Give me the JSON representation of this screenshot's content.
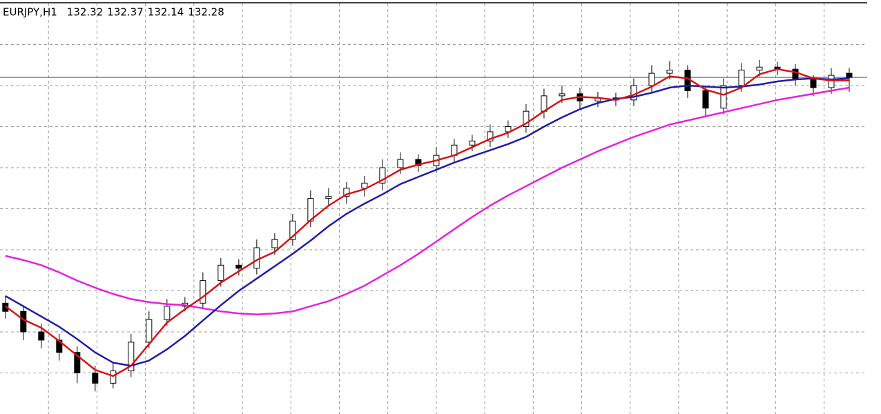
{
  "chart_data": {
    "type": "candlestick",
    "title": "EURJPY,H1",
    "open": [
      130.08,
      130.0,
      129.8,
      129.72,
      129.6,
      129.4,
      129.3,
      129.42,
      129.7,
      129.92,
      130.05,
      130.08,
      130.3,
      130.45,
      130.42,
      130.62,
      130.7,
      130.88,
      131.1,
      131.12,
      131.2,
      131.25,
      131.4,
      131.48,
      131.42,
      131.52,
      131.62,
      131.66,
      131.75,
      131.8,
      131.95,
      132.1,
      132.12,
      132.05,
      132.08,
      132.06,
      132.2,
      132.32,
      132.35,
      132.15,
      131.98,
      132.2,
      132.35,
      132.38,
      132.36,
      132.26,
      132.18,
      132.32
    ],
    "high": [
      130.15,
      130.06,
      129.88,
      129.78,
      129.66,
      129.47,
      129.5,
      129.78,
      130.0,
      130.12,
      130.14,
      130.38,
      130.52,
      130.51,
      130.7,
      130.76,
      130.95,
      131.18,
      131.2,
      131.26,
      131.32,
      131.48,
      131.55,
      131.53,
      131.6,
      131.68,
      131.72,
      131.82,
      131.86,
      132.02,
      132.17,
      132.2,
      132.18,
      132.14,
      132.13,
      132.27,
      132.4,
      132.44,
      132.4,
      132.2,
      132.27,
      132.42,
      132.45,
      132.43,
      132.41,
      132.3,
      132.37,
      132.37
    ],
    "low": [
      129.93,
      129.72,
      129.64,
      129.52,
      129.3,
      129.22,
      129.25,
      129.36,
      129.64,
      129.86,
      130.0,
      130.02,
      130.24,
      130.35,
      130.36,
      130.55,
      130.64,
      130.82,
      131.02,
      131.05,
      131.12,
      131.18,
      131.34,
      131.36,
      131.35,
      131.46,
      131.56,
      131.6,
      131.69,
      131.74,
      131.88,
      132.03,
      131.98,
      131.99,
      132.0,
      132.0,
      132.14,
      132.26,
      132.08,
      131.9,
      131.92,
      132.14,
      132.29,
      132.3,
      132.2,
      132.1,
      132.12,
      132.14
    ],
    "close": [
      130.0,
      129.8,
      129.72,
      129.6,
      129.4,
      129.3,
      129.42,
      129.7,
      129.92,
      130.05,
      130.08,
      130.3,
      130.45,
      130.42,
      130.62,
      130.7,
      130.88,
      131.1,
      131.12,
      131.2,
      131.25,
      131.4,
      131.48,
      131.42,
      131.52,
      131.62,
      131.66,
      131.75,
      131.8,
      131.95,
      132.1,
      132.12,
      132.05,
      132.08,
      132.06,
      132.2,
      132.32,
      132.35,
      132.15,
      131.98,
      132.2,
      132.35,
      132.38,
      132.36,
      132.26,
      132.18,
      132.3,
      132.28
    ],
    "series": [
      {
        "color": "#e81ee0",
        "values": [
          130.54,
          130.5,
          130.45,
          130.38,
          130.3,
          130.23,
          130.17,
          130.12,
          130.09,
          130.07,
          130.06,
          130.03,
          130.0,
          129.98,
          129.97,
          129.98,
          130.0,
          130.05,
          130.1,
          130.17,
          130.25,
          130.35,
          130.45,
          130.56,
          130.68,
          130.8,
          130.92,
          131.03,
          131.13,
          131.22,
          131.31,
          131.4,
          131.48,
          131.56,
          131.63,
          131.7,
          131.76,
          131.82,
          131.86,
          131.9,
          131.94,
          131.98,
          132.02,
          132.06,
          132.09,
          132.12,
          132.15,
          132.18
        ]
      },
      {
        "color": "#1c1ca8",
        "values": [
          130.15,
          130.05,
          129.95,
          129.85,
          129.73,
          129.6,
          129.5,
          129.47,
          129.52,
          129.63,
          129.76,
          129.91,
          130.06,
          130.2,
          130.32,
          130.44,
          130.56,
          130.69,
          130.83,
          130.95,
          131.05,
          131.14,
          131.24,
          131.31,
          131.38,
          131.45,
          131.51,
          131.57,
          131.63,
          131.7,
          131.8,
          131.89,
          131.97,
          132.03,
          132.07,
          132.09,
          132.13,
          132.18,
          132.2,
          132.19,
          132.18,
          132.19,
          132.21,
          132.24,
          132.26,
          132.27,
          132.26,
          132.27
        ]
      },
      {
        "color": "#d41414",
        "values": [
          130.05,
          129.92,
          129.84,
          129.71,
          129.57,
          129.43,
          129.37,
          129.47,
          129.68,
          129.89,
          130.02,
          130.14,
          130.28,
          130.39,
          130.5,
          130.58,
          130.73,
          130.89,
          131.03,
          131.14,
          131.19,
          131.28,
          131.38,
          131.43,
          131.47,
          131.52,
          131.6,
          131.68,
          131.74,
          131.83,
          131.95,
          132.06,
          132.09,
          132.08,
          132.06,
          132.11,
          132.19,
          132.29,
          132.27,
          132.16,
          132.11,
          132.18,
          132.31,
          132.36,
          132.33,
          132.27,
          132.25,
          132.25
        ]
      }
    ],
    "up_color": "#ffffff",
    "down_color": "#000000",
    "ylim": [
      129.0,
      133.0
    ],
    "yticks": [
      129.4,
      129.8,
      130.2,
      130.6,
      131.0,
      131.4,
      131.8,
      132.2,
      132.6
    ],
    "xlim": [
      -0.3,
      48.0
    ],
    "xticks": [
      2.4,
      5.1,
      7.8,
      10.5,
      13.2,
      15.9,
      18.6,
      21.3,
      24.0,
      26.7,
      29.4,
      32.1,
      34.8,
      37.5,
      40.2,
      42.9,
      45.6
    ],
    "grid": true,
    "price_line": true
  }
}
